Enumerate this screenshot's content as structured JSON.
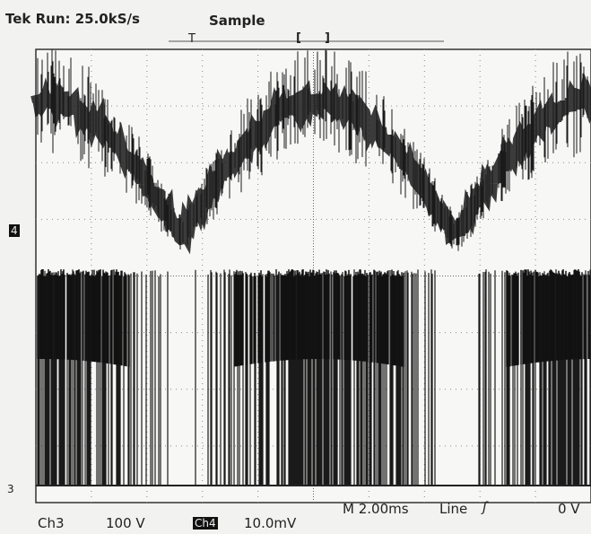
{
  "header": {
    "status": "Tek Run: 25.0kS/s",
    "mode": "Sample",
    "trigger_bar": {
      "trigger": "T",
      "left_bracket": "[",
      "right_bracket": "]"
    }
  },
  "markers": {
    "ch4": "4",
    "ch3": "3"
  },
  "readout": {
    "ch3_label": "Ch3",
    "ch3_scale": "100 V",
    "ch4_label": "Ch4",
    "ch4_scale": "10.0mV",
    "timebase": "M 2.00ms",
    "trigger_source": "Line",
    "trigger_slope": "ʃ",
    "trigger_level": "0 V"
  }
}
